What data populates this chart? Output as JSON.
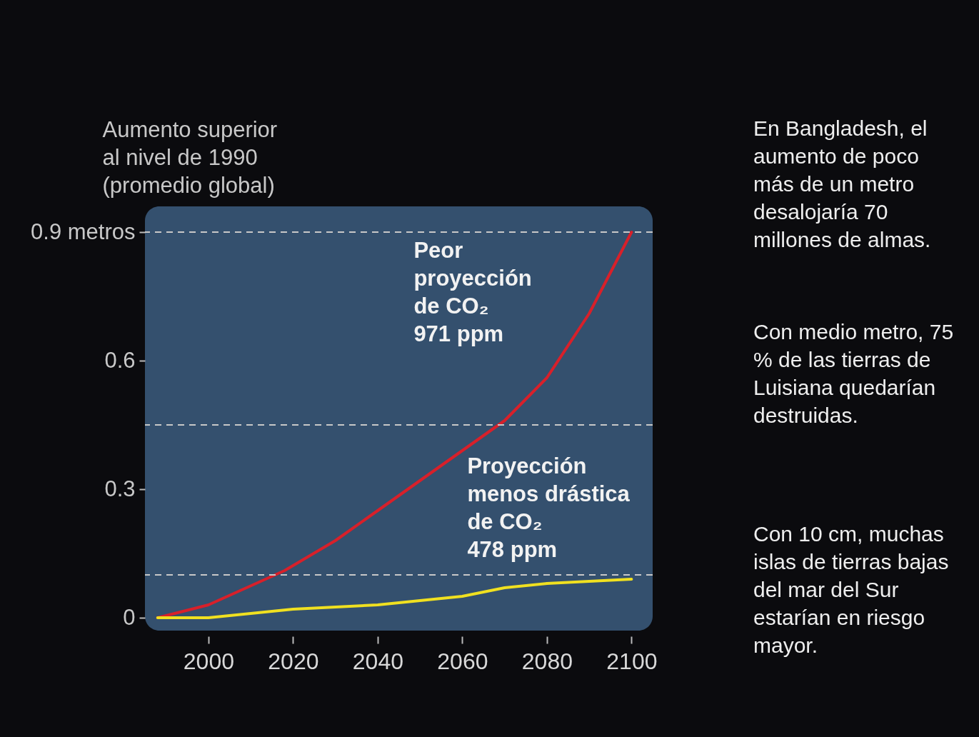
{
  "chart_data": {
    "type": "line",
    "ylabel": "Aumento superior\nal nivel de 1990\n(promedio global)",
    "xlim": [
      1985,
      2105
    ],
    "xticks": [
      2000,
      2020,
      2040,
      2060,
      2080,
      2100
    ],
    "ylim": [
      -0.03,
      0.96
    ],
    "yticks": [
      0,
      0.3,
      0.6,
      {
        "value": 0.9,
        "label": "0.9 metros"
      }
    ],
    "series": [
      {
        "name": "Peor\nproyección\nde CO₂\n971 ppm",
        "color": "#d8202a",
        "x": [
          1988,
          2000,
          2018,
          2030,
          2040,
          2050,
          2060,
          2070,
          2080,
          2090,
          2100
        ],
        "values": [
          0,
          0.03,
          0.11,
          0.18,
          0.25,
          0.32,
          0.39,
          0.46,
          0.56,
          0.71,
          0.9
        ]
      },
      {
        "name": "Proyección\nmenos drástica\nde CO₂\n478 ppm",
        "color": "#f0e020",
        "x": [
          1988,
          2000,
          2020,
          2040,
          2060,
          2070,
          2080,
          2100
        ],
        "values": [
          0,
          0.0,
          0.02,
          0.03,
          0.05,
          0.07,
          0.08,
          0.09
        ]
      }
    ],
    "ref_lines": [
      {
        "axis": "y",
        "value": 0.9,
        "color": "#c8c8c8",
        "line_style": "dashed"
      },
      {
        "axis": "y",
        "value": 0.45,
        "color": "#c8c8c8",
        "line_style": "dashed"
      },
      {
        "axis": "y",
        "value": 0.1,
        "color": "#c8c8c8",
        "line_style": "dashed"
      }
    ],
    "annotations": [
      "En Bangladesh, el aumento de poco más de un metro desalojaría 70 millones de almas.",
      "Con medio metro, 75 % de las tierras de Luisiana quedarían destruidas.",
      "Con 10 cm, muchas islas de tierras bajas del mar del Sur estarían en riesgo mayor."
    ]
  }
}
